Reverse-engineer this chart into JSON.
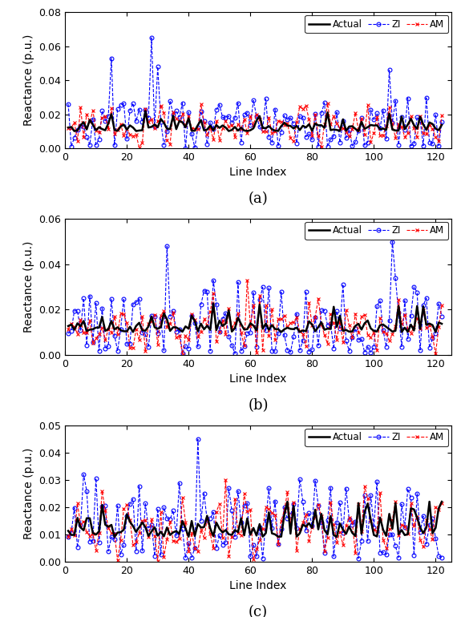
{
  "N": 122,
  "ylim_a": [
    0,
    0.08
  ],
  "ylim_b": [
    0,
    0.06
  ],
  "ylim_c": [
    0,
    0.05
  ],
  "yticks_a": [
    0,
    0.02,
    0.04,
    0.06,
    0.08
  ],
  "yticks_b": [
    0,
    0.02,
    0.04,
    0.06
  ],
  "yticks_c": [
    0,
    0.01,
    0.02,
    0.03,
    0.04,
    0.05
  ],
  "xticks": [
    0,
    20,
    40,
    60,
    80,
    100,
    120
  ],
  "xlabel": "Line Index",
  "ylabel": "Reactance (p.u.)",
  "label_actual": "Actual",
  "label_zi": "ZI",
  "label_am": "AM",
  "color_actual": "#000000",
  "color_zi": "#0000FF",
  "color_am": "#FF0000",
  "lw_actual": 1.8,
  "lw_zi": 0.8,
  "lw_am": 0.8,
  "subfig_labels": [
    "(a)",
    "(b)",
    "(c)"
  ],
  "caption_fontsize": 13,
  "tick_fontsize": 9,
  "label_fontsize": 10,
  "legend_fontsize": 8.5
}
